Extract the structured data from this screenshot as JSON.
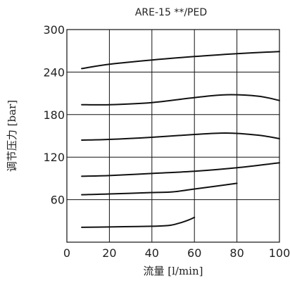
{
  "chart_data": {
    "type": "line",
    "title": "ARE-15 **/PED",
    "xlabel": "流量 [l/min]",
    "ylabel": "调节压力 [bar]",
    "xlim": [
      0,
      100
    ],
    "ylim": [
      0,
      300
    ],
    "x_ticks": [
      0,
      20,
      40,
      60,
      80,
      100
    ],
    "y_ticks": [
      60,
      120,
      180,
      240,
      300
    ],
    "grid": true,
    "series": [
      {
        "x": [
          7,
          20,
          40,
          60,
          80,
          100
        ],
        "y": [
          245,
          251,
          257,
          262,
          266,
          269
        ]
      },
      {
        "x": [
          7,
          20,
          40,
          60,
          75,
          90,
          100
        ],
        "y": [
          194,
          194,
          197,
          204,
          208,
          206,
          200
        ]
      },
      {
        "x": [
          7,
          20,
          40,
          60,
          75,
          90,
          100
        ],
        "y": [
          144,
          145,
          148,
          152,
          154,
          151,
          146
        ]
      },
      {
        "x": [
          7,
          20,
          40,
          60,
          80,
          100
        ],
        "y": [
          93,
          94,
          97,
          100,
          105,
          112
        ]
      },
      {
        "x": [
          7,
          20,
          40,
          50,
          60,
          70,
          80
        ],
        "y": [
          67,
          68,
          70,
          71,
          75,
          79,
          83
        ]
      },
      {
        "x": [
          7,
          20,
          30,
          40,
          48,
          53,
          57,
          60
        ],
        "y": [
          21,
          21.5,
          22,
          22.5,
          23.5,
          27,
          31,
          35
        ]
      }
    ]
  }
}
